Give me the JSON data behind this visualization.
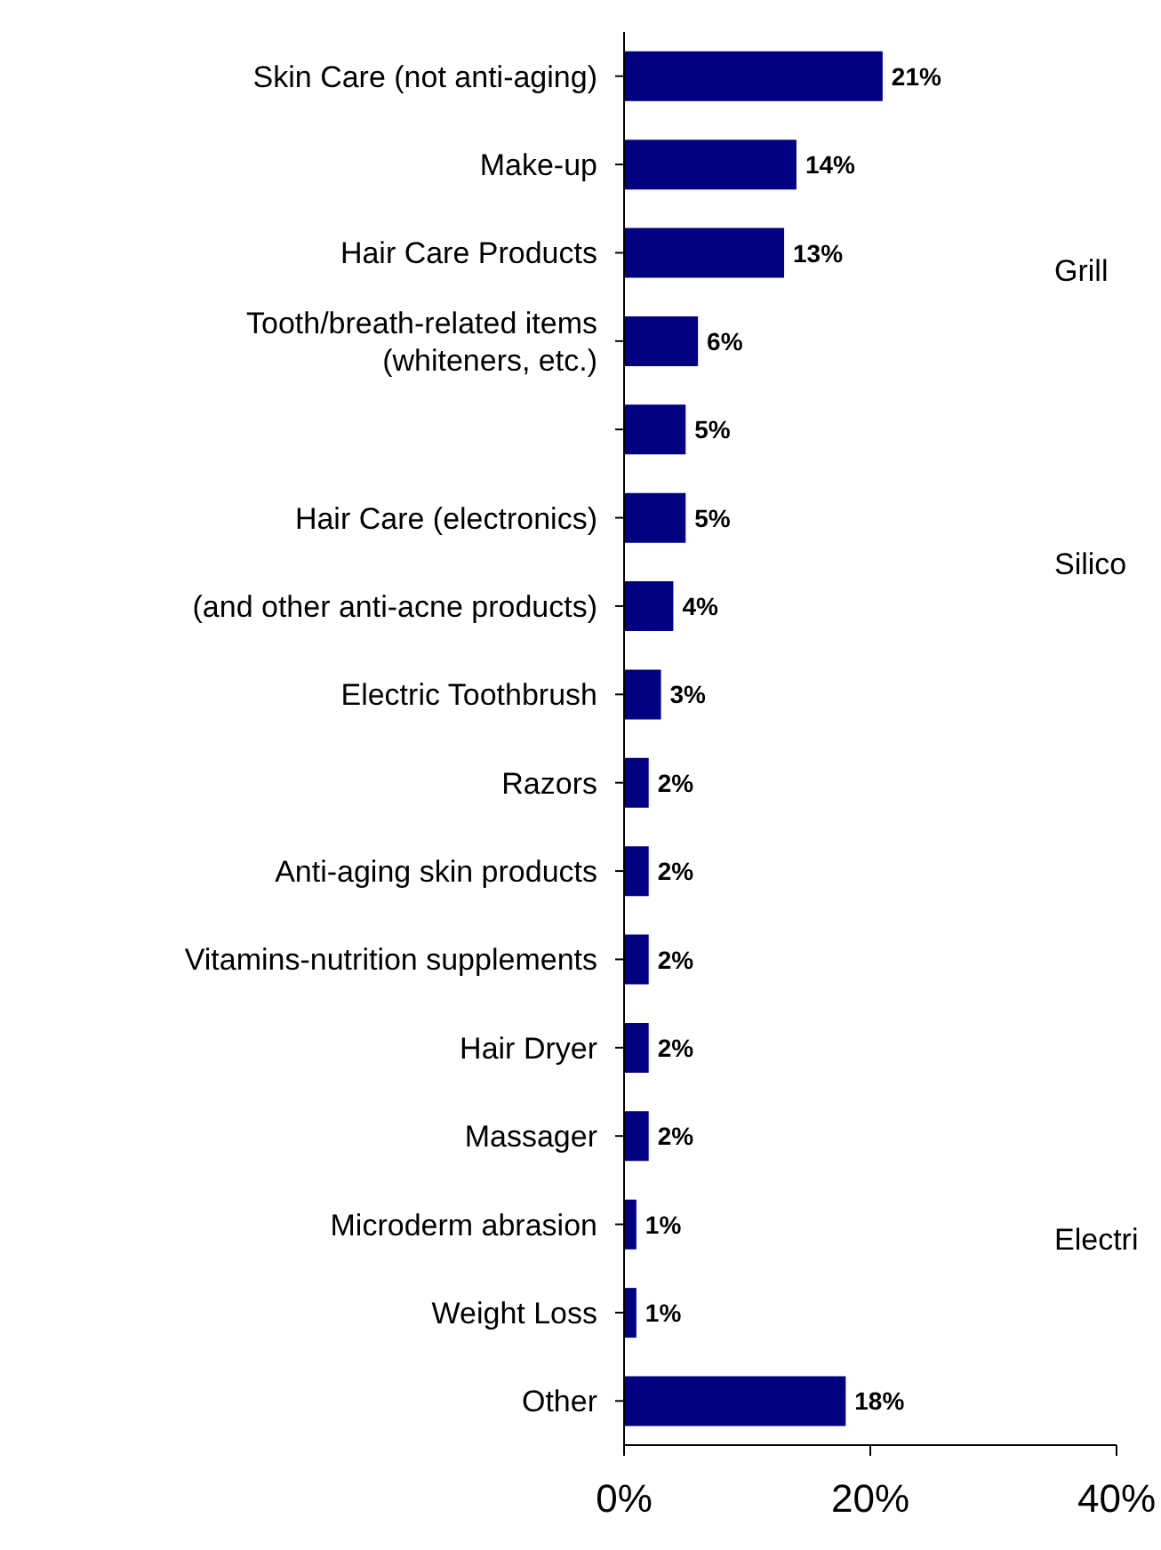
{
  "chart_data": {
    "type": "bar",
    "orientation": "horizontal",
    "categories": [
      "Skin Care (not anti-aging)",
      "Make-up",
      "Hair Care Products",
      "Tooth/breath-related items (whiteners, etc.)",
      null,
      "Hair Care (electronics)",
      "(and other anti-acne products)",
      "Electric Toothbrush",
      "Razors",
      "Anti-aging skin products",
      "Vitamins-nutrition supplements",
      "Hair Dryer",
      "Massager",
      "Microderm abrasion",
      "Weight Loss",
      "Other"
    ],
    "values": [
      21,
      14,
      13,
      6,
      5,
      5,
      4,
      3,
      2,
      2,
      2,
      2,
      2,
      1,
      1,
      18
    ],
    "value_labels": [
      "21%",
      "14%",
      "13%",
      "6%",
      "5%",
      "5%",
      "4%",
      "3%",
      "2%",
      "2%",
      "2%",
      "2%",
      "2%",
      "1%",
      "1%",
      "18%"
    ],
    "color": "#000080",
    "xlim": [
      0,
      40
    ],
    "xticks": [
      {
        "value": 0,
        "label": "0%"
      },
      {
        "value": 20,
        "label": "20%"
      },
      {
        "value": 40,
        "label": "40%"
      }
    ],
    "annotations": [
      "Grill",
      "Silico",
      "Electri"
    ]
  }
}
